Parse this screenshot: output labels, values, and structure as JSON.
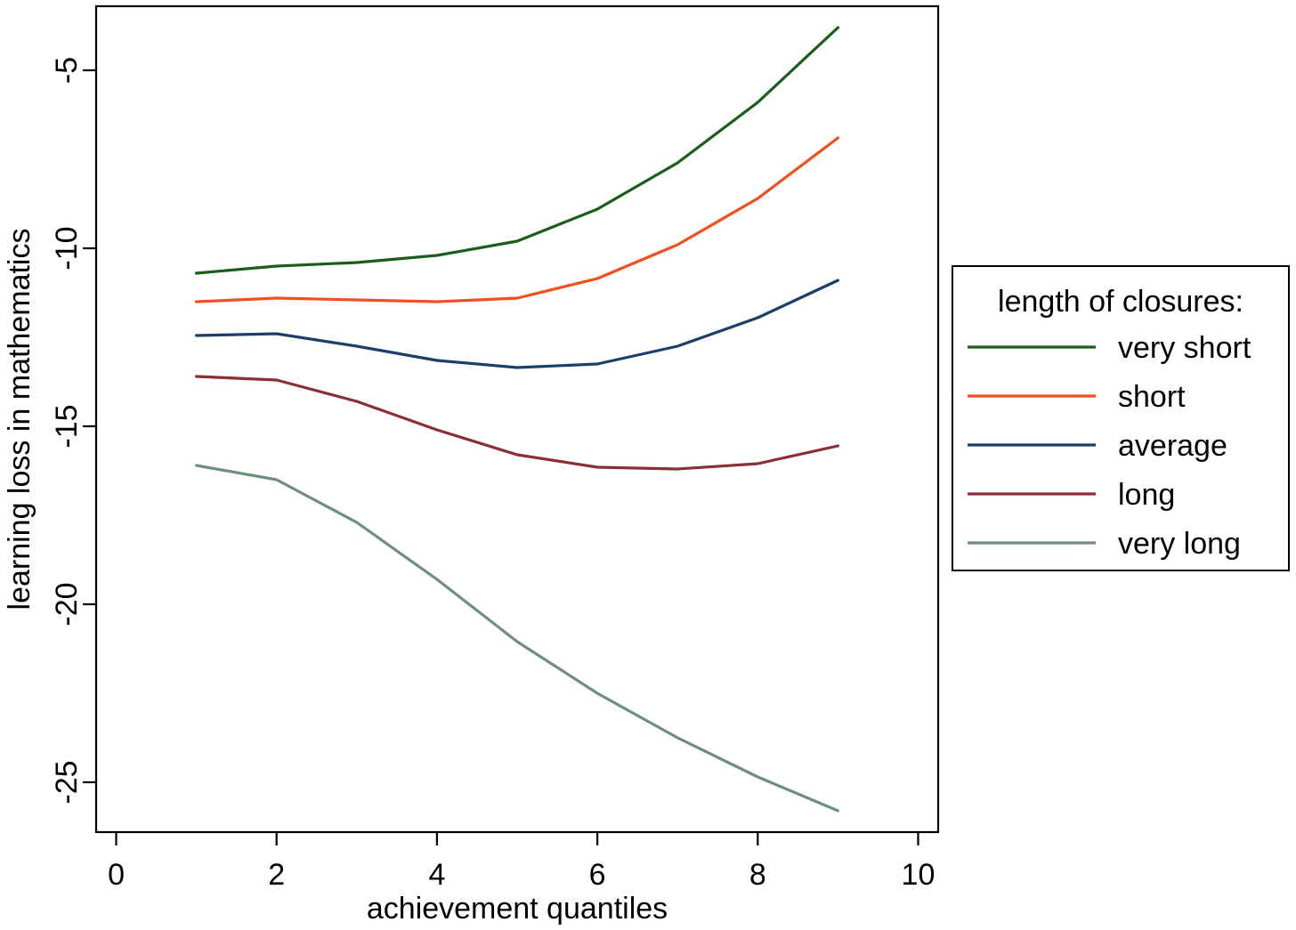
{
  "chart_data": {
    "type": "line",
    "title": "",
    "xlabel": "achievement quantiles",
    "ylabel": "learning loss in mathematics",
    "xlim": [
      -0.25,
      10.25
    ],
    "ylim": [
      -26.4,
      -3.2
    ],
    "xticks": [
      0,
      2,
      4,
      6,
      8,
      10
    ],
    "xtick_labels": [
      "0",
      "2",
      "4",
      "6",
      "8",
      "10"
    ],
    "yticks": [
      -5,
      -10,
      -15,
      -20,
      -25
    ],
    "ytick_labels": [
      "-5",
      "-10",
      "-15",
      "-20",
      "-25"
    ],
    "grid": false,
    "legend": {
      "title": "length of closures:",
      "placement": "right",
      "entries": [
        "very short",
        "short",
        "average",
        "long",
        "very long"
      ]
    },
    "x": [
      1,
      2,
      3,
      4,
      5,
      6,
      7,
      8,
      9
    ],
    "series": [
      {
        "name": "very short",
        "color": "#1a5e1a",
        "values": [
          -10.7,
          -10.5,
          -10.4,
          -10.2,
          -9.8,
          -8.9,
          -7.6,
          -5.9,
          -3.8
        ]
      },
      {
        "name": "short",
        "color": "#f04f1e",
        "values": [
          -11.5,
          -11.4,
          -11.45,
          -11.5,
          -11.4,
          -10.85,
          -9.9,
          -8.6,
          -6.9
        ]
      },
      {
        "name": "average",
        "color": "#1b3f66",
        "values": [
          -12.45,
          -12.4,
          -12.75,
          -13.15,
          -13.35,
          -13.25,
          -12.75,
          -11.95,
          -10.9
        ]
      },
      {
        "name": "long",
        "color": "#8a2f33",
        "values": [
          -13.6,
          -13.7,
          -14.3,
          -15.1,
          -15.8,
          -16.15,
          -16.2,
          -16.05,
          -15.55
        ]
      },
      {
        "name": "very long",
        "color": "#6e8e7e",
        "values": [
          -16.1,
          -16.5,
          -17.7,
          -19.3,
          -21.05,
          -22.5,
          -23.75,
          -24.85,
          -25.8
        ]
      }
    ]
  }
}
